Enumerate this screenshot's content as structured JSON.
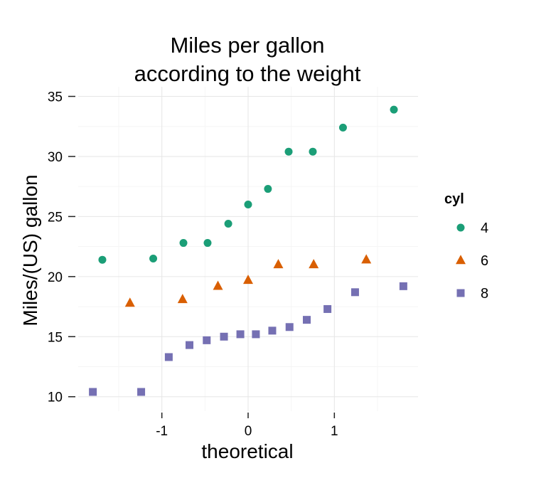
{
  "chart_data": {
    "type": "scatter",
    "title_lines": [
      "Miles per gallon",
      "according to the weight"
    ],
    "xlabel": "theoretical",
    "ylabel": "Miles/(US) gallon",
    "xlim": [
      -1.97,
      1.97
    ],
    "ylim": [
      8.8,
      35.8
    ],
    "x_ticks": [
      -1,
      0,
      1
    ],
    "x_tick_labels": [
      "-1",
      "0",
      "1"
    ],
    "y_ticks": [
      10,
      15,
      20,
      25,
      30,
      35
    ],
    "y_tick_labels": [
      "10",
      "15",
      "20",
      "25",
      "30",
      "35"
    ],
    "grid": true,
    "legend": {
      "title": "cyl",
      "position": "right"
    },
    "series": [
      {
        "name": "4",
        "color": "#1b9e77",
        "marker": "circle",
        "points": [
          {
            "x": -1.69,
            "y": 21.4
          },
          {
            "x": -1.1,
            "y": 21.5
          },
          {
            "x": -0.75,
            "y": 22.8
          },
          {
            "x": -0.47,
            "y": 22.8
          },
          {
            "x": -0.23,
            "y": 24.4
          },
          {
            "x": 0.0,
            "y": 26.0
          },
          {
            "x": 0.23,
            "y": 27.3
          },
          {
            "x": 0.47,
            "y": 30.4
          },
          {
            "x": 0.75,
            "y": 30.4
          },
          {
            "x": 1.1,
            "y": 32.4
          },
          {
            "x": 1.69,
            "y": 33.9
          }
        ]
      },
      {
        "name": "6",
        "color": "#d95f02",
        "marker": "triangle",
        "points": [
          {
            "x": -1.37,
            "y": 17.8
          },
          {
            "x": -0.76,
            "y": 18.1
          },
          {
            "x": -0.35,
            "y": 19.2
          },
          {
            "x": 0.0,
            "y": 19.7
          },
          {
            "x": 0.35,
            "y": 21.0
          },
          {
            "x": 0.76,
            "y": 21.0
          },
          {
            "x": 1.37,
            "y": 21.4
          }
        ]
      },
      {
        "name": "8",
        "color": "#7570b3",
        "marker": "square",
        "points": [
          {
            "x": -1.8,
            "y": 10.4
          },
          {
            "x": -1.24,
            "y": 10.4
          },
          {
            "x": -0.92,
            "y": 13.3
          },
          {
            "x": -0.68,
            "y": 14.3
          },
          {
            "x": -0.48,
            "y": 14.7
          },
          {
            "x": -0.28,
            "y": 15.0
          },
          {
            "x": -0.09,
            "y": 15.2
          },
          {
            "x": 0.09,
            "y": 15.2
          },
          {
            "x": 0.28,
            "y": 15.5
          },
          {
            "x": 0.48,
            "y": 15.8
          },
          {
            "x": 0.68,
            "y": 16.4
          },
          {
            "x": 0.92,
            "y": 17.3
          },
          {
            "x": 1.24,
            "y": 18.7
          },
          {
            "x": 1.8,
            "y": 19.2
          }
        ]
      }
    ]
  }
}
